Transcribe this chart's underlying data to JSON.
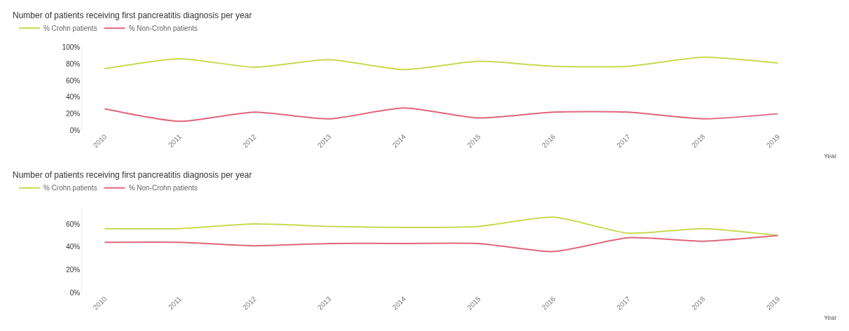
{
  "chart_data": [
    {
      "type": "line",
      "title": "Number of patients receiving first pancreatitis diagnosis per year",
      "xlabel": "Year",
      "categories": [
        "2010",
        "2011",
        "2012",
        "2013",
        "2014",
        "2015",
        "2016",
        "2017",
        "2018",
        "2019"
      ],
      "series": [
        {
          "name": "% Crohn patients",
          "color": "#c9d94f",
          "values": [
            74,
            86,
            76,
            85,
            73,
            83,
            77,
            77,
            88,
            81
          ]
        },
        {
          "name": "% Non-Crohn patients",
          "color": "#e0657c",
          "values": [
            26,
            11,
            22,
            14,
            27,
            15,
            22,
            22,
            14,
            20
          ]
        }
      ],
      "ylim": [
        0,
        100
      ],
      "yticks": [
        {
          "value": 0,
          "label": "0%"
        },
        {
          "value": 20,
          "label": "20%"
        },
        {
          "value": 40,
          "label": "40%"
        },
        {
          "value": 60,
          "label": "60%"
        },
        {
          "value": 80,
          "label": "80%"
        },
        {
          "value": 100,
          "label": "100%"
        }
      ],
      "legend": "top left",
      "marker": "none",
      "line_style": "solid"
    },
    {
      "type": "line",
      "title": "Number of patients receiving first pancreatitis diagnosis per year",
      "xlabel": "Year",
      "categories": [
        "2010",
        "2011",
        "2012",
        "2013",
        "2014",
        "2015",
        "2016",
        "2017",
        "2018",
        "2019"
      ],
      "series": [
        {
          "name": "% Crohn patients",
          "color": "#c9d94f",
          "values": [
            56,
            56,
            60,
            58,
            57,
            58,
            66,
            52,
            56,
            50
          ]
        },
        {
          "name": "% Non-Crohn patients",
          "color": "#e0657c",
          "values": [
            44,
            44,
            41,
            43,
            43,
            43,
            36,
            48,
            45,
            50
          ]
        }
      ],
      "ylim": [
        0,
        75
      ],
      "yticks": [
        {
          "value": 0,
          "label": "0%"
        },
        {
          "value": 20,
          "label": "20%"
        },
        {
          "value": 40,
          "label": "40%"
        },
        {
          "value": 60,
          "label": "60%"
        }
      ],
      "legend": "top left",
      "marker": "none",
      "line_style": "solid"
    }
  ]
}
